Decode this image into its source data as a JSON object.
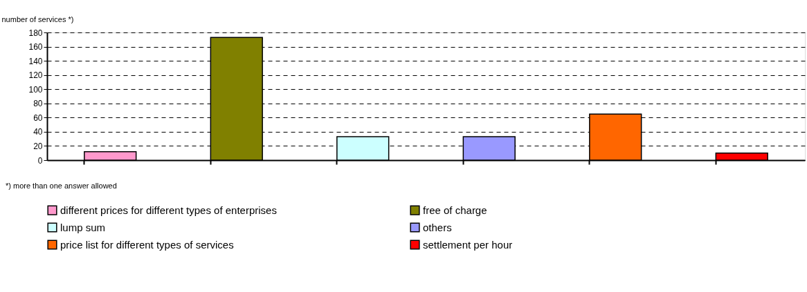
{
  "chart_data": {
    "type": "bar",
    "ylabel": "number of services *)",
    "categories": [
      null,
      null,
      null,
      null,
      null,
      null
    ],
    "series": [
      {
        "name": "different prices for different types of enterprises",
        "color": "#ff99cc",
        "values": [
          12,
          null,
          null,
          null,
          null,
          null
        ]
      },
      {
        "name": "free of charge",
        "color": "#808000",
        "values": [
          null,
          173,
          null,
          null,
          null,
          null
        ]
      },
      {
        "name": "lump sum",
        "color": "#ccffff",
        "values": [
          null,
          null,
          33,
          null,
          null,
          null
        ]
      },
      {
        "name": "others",
        "color": "#9999ff",
        "values": [
          null,
          null,
          null,
          33,
          null,
          null
        ]
      },
      {
        "name": "price list for different types of services",
        "color": "#ff6600",
        "values": [
          null,
          null,
          null,
          null,
          65,
          null
        ]
      },
      {
        "name": "settlement per hour",
        "color": "#ff0000",
        "values": [
          null,
          null,
          null,
          null,
          null,
          10
        ]
      }
    ],
    "ylim": [
      0,
      180
    ],
    "yticks": [
      0,
      20,
      40,
      60,
      80,
      100,
      120,
      140,
      160,
      180
    ],
    "grid": "y",
    "legend": "bottom",
    "annotations": [
      "*) more than one answer allowed"
    ]
  }
}
